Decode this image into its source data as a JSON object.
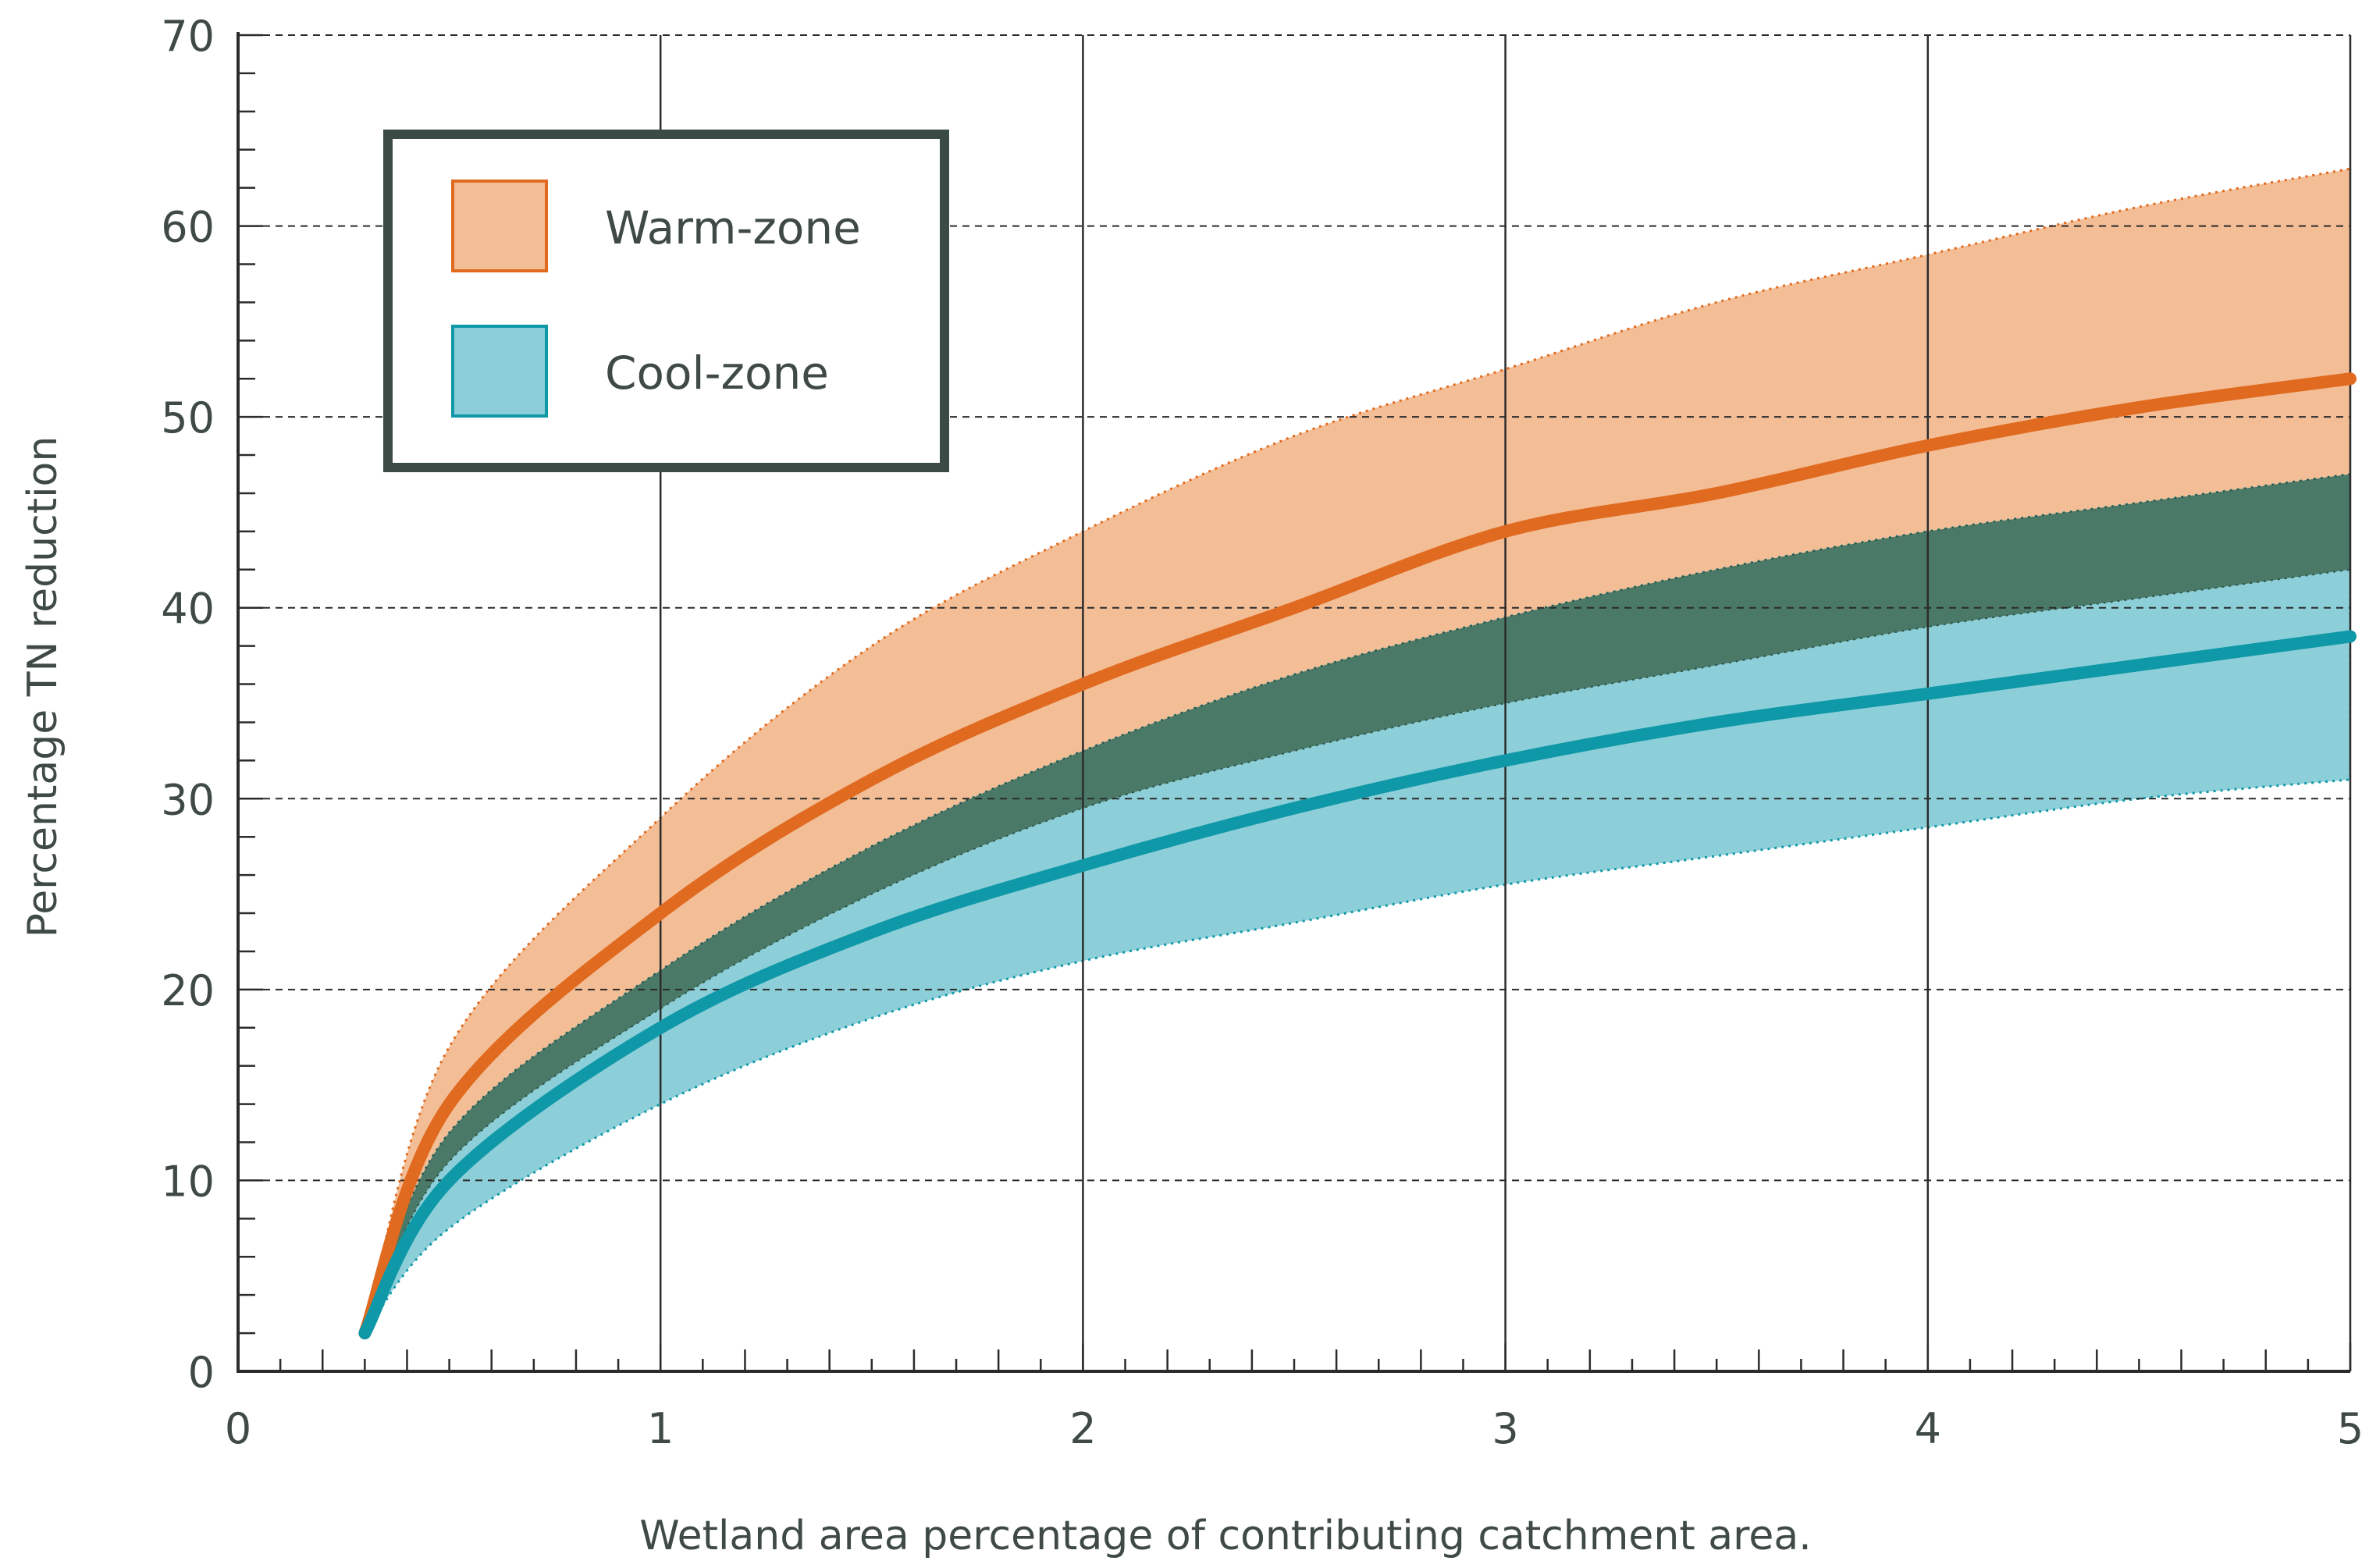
{
  "chart_data": {
    "type": "area",
    "title": "",
    "xlabel": "Wetland area percentage of contributing catchment area.",
    "ylabel": "Percentage TN reduction",
    "xlim": [
      0,
      5
    ],
    "ylim": [
      0,
      70
    ],
    "x_ticks": [
      "0",
      "1",
      "2",
      "3",
      "4",
      "5"
    ],
    "y_ticks": [
      "0",
      "10",
      "20",
      "30",
      "40",
      "50",
      "60",
      "70"
    ],
    "grid": true,
    "legend_position": "top-left",
    "series": [
      {
        "name": "Warm-zone",
        "fill_color": "#f3bd96",
        "line_color": "#e06a1f",
        "x": [
          0.3,
          0.5,
          1.0,
          1.5,
          2.0,
          2.5,
          3.0,
          3.5,
          4.0,
          4.5,
          5.0
        ],
        "mean": [
          2,
          14,
          24,
          31,
          36,
          40,
          44,
          46,
          48.5,
          50.5,
          52
        ],
        "upper": [
          2,
          17,
          29,
          38,
          44,
          49,
          52.5,
          56,
          58.5,
          61,
          63
        ],
        "lower": [
          2,
          11,
          19,
          25,
          29.5,
          32.5,
          35,
          37,
          39,
          40.5,
          42
        ]
      },
      {
        "name": "Cool-zone",
        "fill_color": "#8dcfd9",
        "line_color": "#0f98a7",
        "x": [
          0.3,
          0.5,
          1.0,
          1.5,
          2.0,
          2.5,
          3.0,
          3.5,
          4.0,
          4.5,
          5.0
        ],
        "mean": [
          2,
          10,
          18,
          23,
          26.5,
          29.5,
          32,
          34,
          35.5,
          37,
          38.5
        ],
        "upper": [
          2,
          12.5,
          21,
          27.5,
          32.5,
          36.5,
          39.5,
          42,
          44,
          45.5,
          47
        ],
        "lower": [
          2,
          7.5,
          14,
          18.5,
          21.5,
          23.5,
          25.5,
          27,
          28.5,
          30,
          31
        ]
      }
    ],
    "overlap_color": "#4a7a67",
    "legend": [
      {
        "label": "Warm-zone",
        "color": "#f3bd96",
        "border": "#e06a1f"
      },
      {
        "label": "Cool-zone",
        "color": "#8dcfd9",
        "border": "#0f98a7"
      }
    ]
  }
}
